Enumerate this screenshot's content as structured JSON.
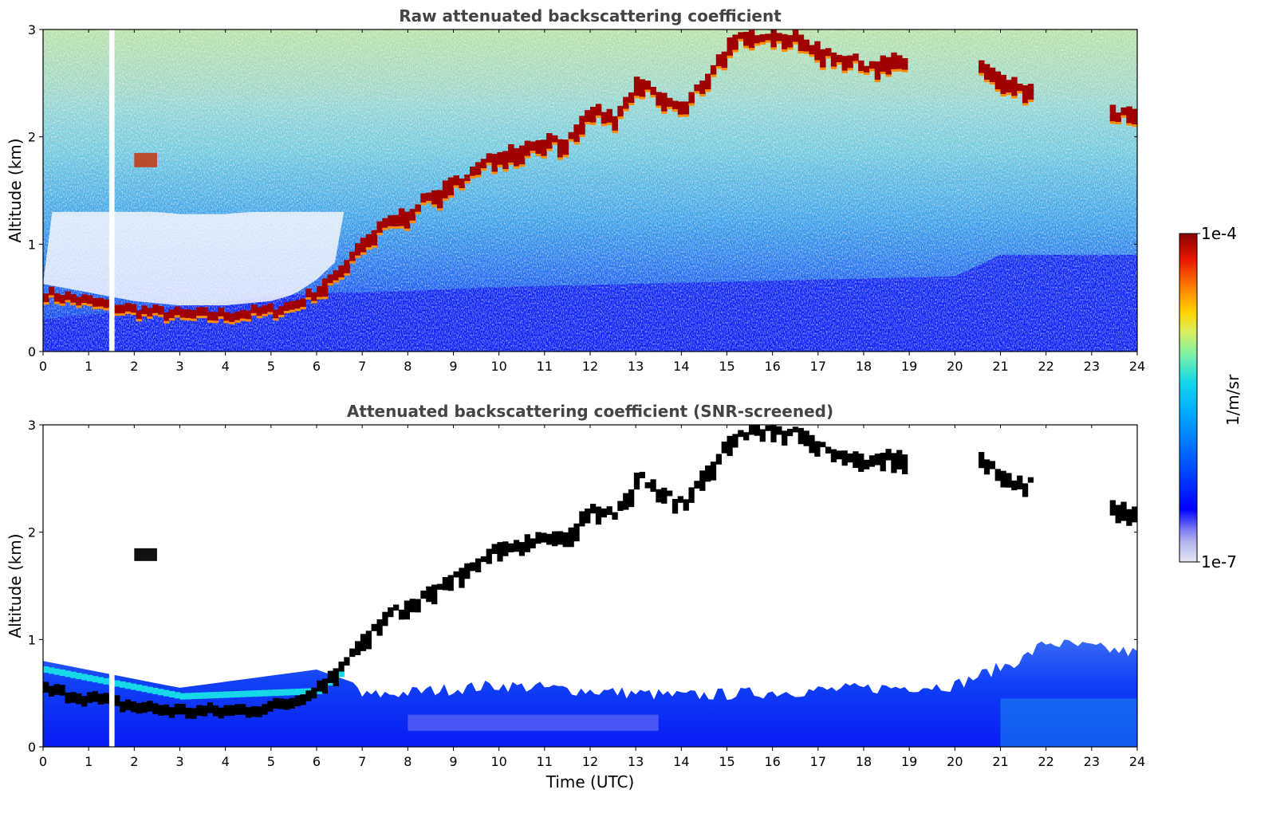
{
  "chart_data": [
    {
      "type": "heatmap",
      "title": "Raw attenuated backscattering coefficient",
      "xlabel": "",
      "ylabel": "Altitude (km)",
      "xlim": [
        0,
        24
      ],
      "ylim": [
        0,
        3
      ],
      "xticks": [
        "0",
        "1",
        "2",
        "3",
        "4",
        "5",
        "6",
        "7",
        "8",
        "9",
        "10",
        "11",
        "12",
        "13",
        "14",
        "15",
        "16",
        "17",
        "18",
        "19",
        "20",
        "21",
        "22",
        "23",
        "24"
      ],
      "yticks": [
        "0",
        "1",
        "2",
        "3"
      ],
      "missing_data_gap_hours": [
        1.45,
        1.55
      ],
      "layer_top_km": [
        [
          0,
          0.58
        ],
        [
          1,
          0.5
        ],
        [
          2,
          0.42
        ],
        [
          3,
          0.38
        ],
        [
          4,
          0.38
        ],
        [
          5,
          0.42
        ],
        [
          5.5,
          0.48
        ],
        [
          6,
          0.62
        ],
        [
          6.5,
          0.82
        ],
        [
          7,
          1.05
        ],
        [
          7.5,
          1.25
        ],
        [
          8,
          1.35
        ],
        [
          8.5,
          1.5
        ],
        [
          9,
          1.62
        ],
        [
          9.5,
          1.75
        ],
        [
          10,
          1.9
        ],
        [
          10.5,
          1.95
        ],
        [
          11,
          2.02
        ],
        [
          11.5,
          2.0
        ],
        [
          12,
          2.3
        ],
        [
          12.5,
          2.2
        ],
        [
          13,
          2.55
        ],
        [
          13.5,
          2.4
        ],
        [
          14,
          2.3
        ],
        [
          14.5,
          2.6
        ],
        [
          15,
          2.9
        ],
        [
          15.5,
          2.98
        ],
        [
          16,
          3.0
        ],
        [
          16.5,
          2.95
        ],
        [
          17,
          2.85
        ],
        [
          18,
          2.7
        ],
        [
          18.5,
          2.75
        ],
        [
          20.5,
          2.72
        ],
        [
          21,
          2.55
        ],
        [
          23.5,
          2.25
        ]
      ]
    },
    {
      "type": "heatmap",
      "title": "Attenuated backscattering coefficient (SNR-screened)",
      "xlabel": "Time (UTC)",
      "ylabel": "Altitude (km)",
      "xlim": [
        0,
        24
      ],
      "ylim": [
        0,
        3
      ],
      "xticks": [
        "0",
        "1",
        "2",
        "3",
        "4",
        "5",
        "6",
        "7",
        "8",
        "9",
        "10",
        "11",
        "12",
        "13",
        "14",
        "15",
        "16",
        "17",
        "18",
        "19",
        "20",
        "21",
        "22",
        "23",
        "24"
      ],
      "yticks": [
        "0",
        "1",
        "2",
        "3"
      ],
      "boundary_layer_top_km": [
        [
          0,
          0.8
        ],
        [
          3,
          0.55
        ],
        [
          6,
          0.72
        ],
        [
          6.8,
          0.6
        ],
        [
          7,
          0.45
        ],
        [
          10,
          0.55
        ],
        [
          14,
          0.45
        ],
        [
          18,
          0.52
        ],
        [
          20,
          0.55
        ],
        [
          21.5,
          0.8
        ],
        [
          22,
          0.95
        ],
        [
          24,
          0.85
        ]
      ]
    }
  ],
  "colorbar": {
    "label": "1/m/sr",
    "max_label": "1e-4",
    "min_label": "1e-7",
    "scale": "log",
    "range": [
      1e-07,
      0.0001
    ],
    "colors": [
      "#e6e6f5",
      "#b4b4ec",
      "#7a7af2",
      "#0000ff",
      "#0055ff",
      "#00a8ff",
      "#16d8e8",
      "#7cf0a8",
      "#d8f060",
      "#ffd400",
      "#ff7a00",
      "#e81800",
      "#8b0000"
    ]
  }
}
